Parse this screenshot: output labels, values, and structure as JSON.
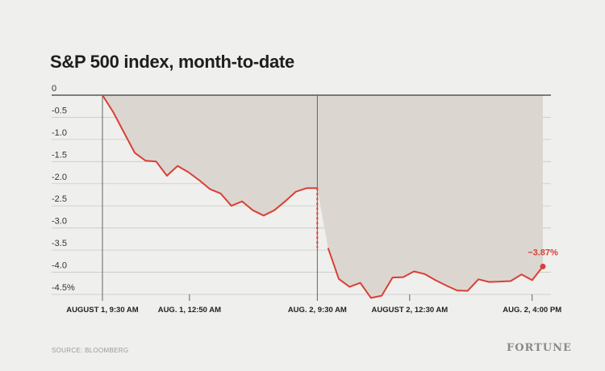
{
  "chart_data": {
    "type": "area",
    "title": "S&P 500 index, month-to-date",
    "xlabel": "",
    "ylabel": "",
    "ylim": [
      -4.5,
      0
    ],
    "yticks": [
      0,
      -0.5,
      -1.0,
      -1.5,
      -2.0,
      -2.5,
      -3.0,
      -3.5,
      -4.0,
      -4.5
    ],
    "ytick_labels": [
      "0",
      "-0.5",
      "-1.0",
      "-1.5",
      "-2.0",
      "-2.5",
      "-3.0",
      "-3.5",
      "-4.0",
      "-4.5%"
    ],
    "xtick_labels": [
      "AUGUST 1, 9:30 AM",
      "AUG. 1, 12:50 AM",
      "AUG. 2, 9:30 AM",
      "AUGUST 2, 12:30 AM",
      "AUG. 2, 4:00 PM"
    ],
    "xtick_index": [
      0,
      8.1,
      20,
      28.6,
      40
    ],
    "grid": true,
    "series": [
      {
        "values": [
          0,
          -0.38,
          -0.84,
          -1.3,
          -1.48,
          -1.5,
          -1.82,
          -1.6,
          -1.74,
          -1.92,
          -2.12,
          -2.22,
          -2.5,
          -2.4,
          -2.6,
          -2.72,
          -2.6,
          -2.4,
          -2.18,
          -2.1,
          -2.1,
          -3.45,
          -4.15,
          -4.33,
          -4.24,
          -4.58,
          -4.53,
          -4.12,
          -4.11,
          -3.98,
          -4.04,
          -4.18,
          -4.3,
          -4.41,
          -4.42,
          -4.16,
          -4.22,
          -4.21,
          -4.2,
          -4.05,
          -4.18,
          -3.87
        ],
        "line_color": "#d94035",
        "fill_color": "#dcd6d1"
      }
    ],
    "gap_after_index": 20,
    "annotations": [
      {
        "text": "−3.87%",
        "index": 41
      }
    ]
  },
  "source": "SOURCE: BLOOMBERG",
  "brand": "FORTUNE"
}
